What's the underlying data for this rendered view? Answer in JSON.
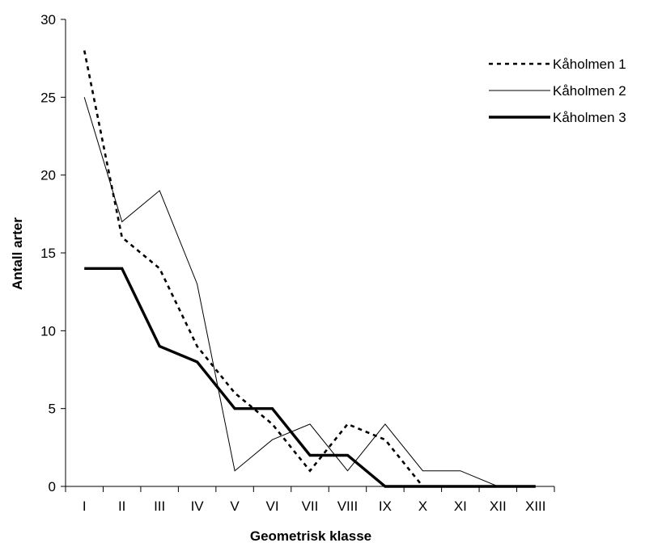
{
  "chart_data": {
    "type": "line",
    "xlabel": "Geometrisk klasse",
    "ylabel": "Antall arter",
    "ylim": [
      0,
      30
    ],
    "yticks": [
      0,
      5,
      10,
      15,
      20,
      25,
      30
    ],
    "categories": [
      "I",
      "II",
      "III",
      "IV",
      "V",
      "VI",
      "VII",
      "VIII",
      "IX",
      "X",
      "XI",
      "XII",
      "XIII"
    ],
    "grid": false,
    "legend_position": "top-right",
    "series": [
      {
        "name": "Kåholmen 1",
        "style": "dotted",
        "color": "#000000",
        "values": [
          28,
          16,
          14,
          9,
          6,
          4,
          1,
          4,
          3,
          0,
          0,
          0,
          0
        ]
      },
      {
        "name": "Kåholmen 2",
        "style": "thin",
        "color": "#000000",
        "values": [
          25,
          17,
          19,
          13,
          1,
          3,
          4,
          1,
          4,
          1,
          1,
          0,
          0
        ]
      },
      {
        "name": "Kåholmen 3",
        "style": "thick",
        "color": "#000000",
        "values": [
          14,
          14,
          9,
          8,
          5,
          5,
          2,
          2,
          0,
          0,
          0,
          0,
          0
        ]
      }
    ]
  }
}
